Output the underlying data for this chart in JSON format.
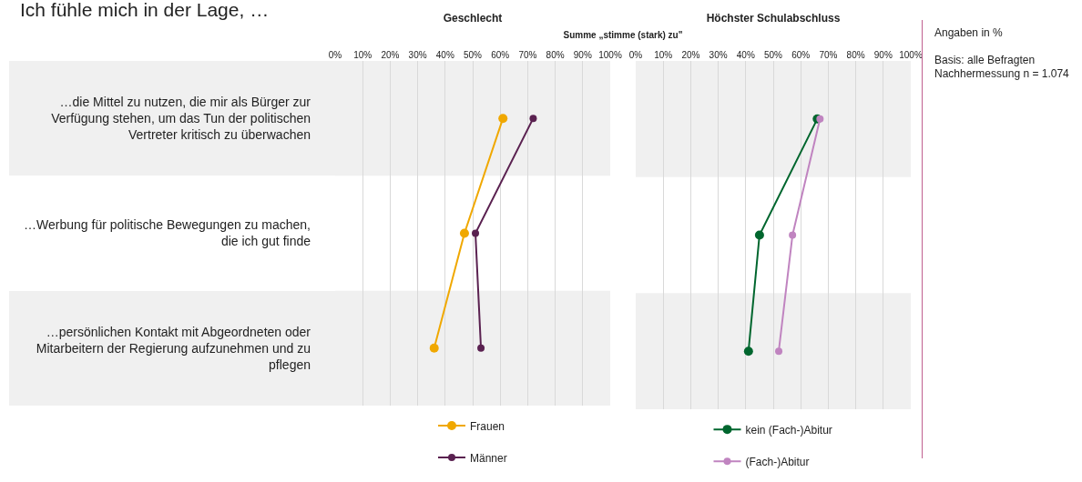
{
  "chart_data": [
    {
      "type": "line",
      "orientation": "horizontal",
      "title": "Geschlecht",
      "annotations": [
        "Ich fühle mich in der Lage, …",
        "Summe „stimme (stark) zu\""
      ],
      "categories": [
        "…die Mittel zu nutzen, die mir als Bürger zur Verfügung stehen, um das Tun der politischen Vertreter kritisch zu überwachen",
        "…Werbung für politische Bewegungen zu machen, die ich gut finde",
        "…persönlichen Kontakt mit Abgeordneten oder Mitarbeitern der Regierung aufzunehmen und zu pflegen"
      ],
      "series": [
        {
          "name": "Frauen",
          "color": "#f0a800",
          "values": [
            61,
            47,
            36
          ]
        },
        {
          "name": "Männer",
          "color": "#5a2150",
          "values": [
            72,
            51,
            53
          ]
        }
      ],
      "bands": [
        {
          "axis": "y",
          "from": "…die Mittel zu nutzen, die mir als Bürger zur Verfügung stehen, um das Tun der politischen Vertreter kritisch zu überwachen",
          "to": "…die Mittel zu nutzen, die mir als Bürger zur Verfügung stehen, um das Tun der politischen Vertreter kritisch zu überwachen",
          "color": "#f0f0f0"
        },
        {
          "axis": "y",
          "from": "…persönlichen Kontakt mit Abgeordneten oder Mitarbeitern der Regierung aufzunehmen und zu pflegen",
          "to": "…persönlichen Kontakt mit Abgeordneten oder Mitarbeitern der Regierung aufzunehmen und zu pflegen",
          "color": "#f0f0f0"
        }
      ],
      "xlim": [
        0,
        100
      ],
      "xticks": [
        {
          "value": 0,
          "label": "0%"
        },
        {
          "value": 10,
          "label": "10%"
        },
        {
          "value": 20,
          "label": "20%"
        },
        {
          "value": 30,
          "label": "30%"
        },
        {
          "value": 40,
          "label": "40%"
        },
        {
          "value": 50,
          "label": "50%"
        },
        {
          "value": 60,
          "label": "60%"
        },
        {
          "value": 70,
          "label": "70%"
        },
        {
          "value": 80,
          "label": "80%"
        },
        {
          "value": 90,
          "label": "90%"
        },
        {
          "value": 100,
          "label": "100%"
        }
      ],
      "grid": "x",
      "legend": "bottom",
      "marker": "circle",
      "line_style": "solid"
    },
    {
      "type": "line",
      "orientation": "horizontal",
      "title": "Höchster Schulabschluss",
      "annotations": [
        "Angaben in %",
        "Basis: alle Befragten",
        "Nachhermessung n = 1.074"
      ],
      "categories": [
        "…die Mittel zu nutzen, die mir als Bürger zur Verfügung stehen, um das Tun der politischen Vertreter kritisch zu überwachen",
        "…Werbung für politische Bewegungen zu machen, die ich gut finde",
        "…persönlichen Kontakt mit Abgeordneten oder Mitarbeitern der Regierung aufzunehmen und zu pflegen"
      ],
      "series": [
        {
          "name": "kein (Fach-)Abitur",
          "color": "#00662e",
          "values": [
            66,
            45,
            41
          ]
        },
        {
          "name": "(Fach-)Abitur",
          "color": "#c084c0",
          "values": [
            67,
            57,
            52
          ]
        }
      ],
      "bands": [
        {
          "axis": "y",
          "from": "…die Mittel zu nutzen, die mir als Bürger zur Verfügung stehen, um das Tun der politischen Vertreter kritisch zu überwachen",
          "to": "…die Mittel zu nutzen, die mir als Bürger zur Verfügung stehen, um das Tun der politischen Vertreter kritisch zu überwachen",
          "color": "#f0f0f0"
        },
        {
          "axis": "y",
          "from": "…persönlichen Kontakt mit Abgeordneten oder Mitarbeitern der Regierung aufzunehmen und zu pflegen",
          "to": "…persönlichen Kontakt mit Abgeordneten oder Mitarbeitern der Regierung aufzunehmen und zu pflegen",
          "color": "#f0f0f0"
        }
      ],
      "xlim": [
        0,
        100
      ],
      "xticks": [
        {
          "value": 0,
          "label": "0%"
        },
        {
          "value": 10,
          "label": "10%"
        },
        {
          "value": 20,
          "label": "20%"
        },
        {
          "value": 30,
          "label": "30%"
        },
        {
          "value": 40,
          "label": "40%"
        },
        {
          "value": 50,
          "label": "50%"
        },
        {
          "value": 60,
          "label": "60%"
        },
        {
          "value": 70,
          "label": "70%"
        },
        {
          "value": 80,
          "label": "80%"
        },
        {
          "value": 90,
          "label": "90%"
        },
        {
          "value": 100,
          "label": "100%"
        }
      ],
      "grid": "x",
      "legend": "bottom",
      "marker": "circle",
      "line_style": "solid",
      "tick_labels": "x"
    }
  ]
}
